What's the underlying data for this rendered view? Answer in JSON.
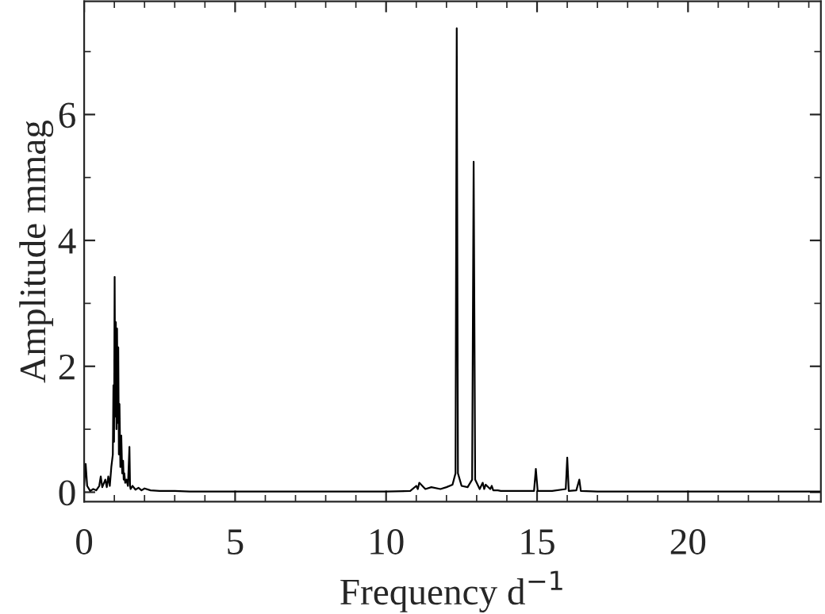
{
  "chart_data": {
    "type": "line",
    "xlabel": "Frequency d$^{−1}$",
    "ylabel": "Amplitude mmag",
    "series": [
      {
        "color": "#000000",
        "x": [
          0.0,
          0.05,
          0.1,
          0.2,
          0.3,
          0.4,
          0.5,
          0.55,
          0.6,
          0.7,
          0.75,
          0.8,
          0.85,
          0.9,
          0.95,
          0.97,
          0.99,
          1.01,
          1.03,
          1.05,
          1.07,
          1.09,
          1.11,
          1.13,
          1.15,
          1.17,
          1.2,
          1.23,
          1.26,
          1.29,
          1.31,
          1.33,
          1.36,
          1.4,
          1.45,
          1.5,
          1.52,
          1.54,
          1.6,
          1.7,
          1.8,
          1.9,
          2.0,
          2.2,
          2.5,
          3.0,
          3.5,
          4.0,
          5.0,
          6.0,
          7.0,
          8.0,
          9.0,
          10.0,
          10.8,
          11.0,
          11.05,
          11.1,
          11.3,
          11.5,
          11.8,
          12.0,
          12.2,
          12.3,
          12.34,
          12.38,
          12.5,
          12.7,
          12.85,
          12.9,
          12.95,
          13.1,
          13.2,
          13.25,
          13.3,
          13.45,
          13.5,
          13.55,
          13.7,
          13.8,
          14.0,
          14.5,
          14.9,
          14.96,
          15.02,
          15.5,
          15.95,
          16.0,
          16.05,
          16.3,
          16.4,
          16.45,
          17.0,
          18.0,
          19.0,
          20.0,
          21.0,
          22.0,
          23.0,
          24.4
        ],
        "values": [
          0.1,
          0.45,
          0.1,
          0.02,
          0.05,
          0.03,
          0.1,
          0.25,
          0.08,
          0.2,
          0.08,
          0.25,
          0.1,
          0.4,
          0.6,
          1.7,
          0.8,
          3.42,
          1.2,
          2.7,
          1.0,
          2.6,
          1.1,
          2.3,
          0.6,
          1.4,
          0.4,
          0.9,
          0.3,
          0.5,
          0.2,
          0.3,
          0.15,
          0.2,
          0.1,
          0.72,
          0.1,
          0.05,
          0.1,
          0.04,
          0.07,
          0.03,
          0.06,
          0.03,
          0.02,
          0.02,
          0.01,
          0.01,
          0.01,
          0.01,
          0.01,
          0.01,
          0.01,
          0.01,
          0.02,
          0.1,
          0.05,
          0.15,
          0.05,
          0.08,
          0.05,
          0.08,
          0.12,
          0.3,
          7.37,
          0.3,
          0.1,
          0.08,
          0.2,
          5.25,
          0.2,
          0.05,
          0.15,
          0.05,
          0.12,
          0.05,
          0.1,
          0.03,
          0.03,
          0.02,
          0.02,
          0.02,
          0.02,
          0.37,
          0.02,
          0.02,
          0.05,
          0.55,
          0.02,
          0.03,
          0.2,
          0.02,
          0.01,
          0.01,
          0.01,
          0.01,
          0.01,
          0.01,
          0.01,
          0.01
        ]
      }
    ],
    "xlim": [
      0,
      24.4
    ],
    "ylim": [
      -0.15,
      7.8
    ],
    "xticks": [
      0,
      5,
      10,
      15,
      20
    ],
    "yticks": [
      0,
      2,
      4,
      6
    ],
    "grid": false,
    "legend": false,
    "marker": "none",
    "line_style": "solid"
  }
}
